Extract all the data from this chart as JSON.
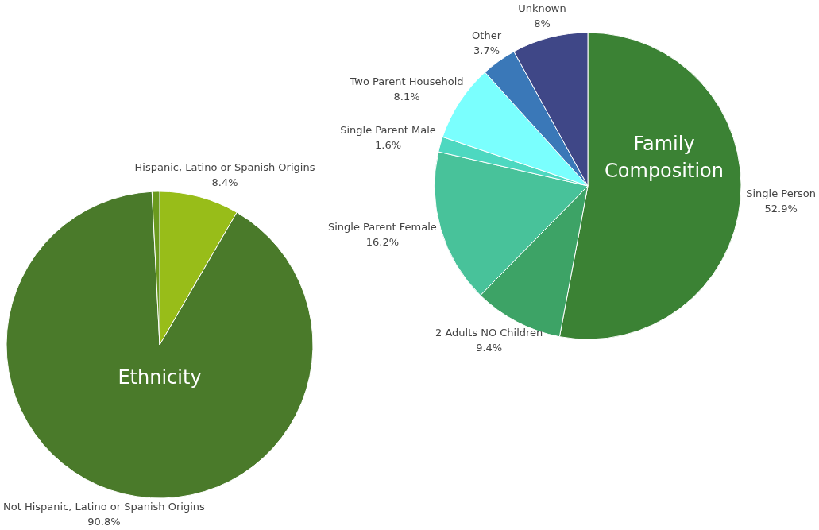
{
  "chart_data": [
    {
      "type": "pie",
      "title": "Ethnicity",
      "categories": [
        "Hispanic, Latino or Spanish Origins",
        "Not Hispanic, Latino or Spanish Origins",
        null
      ],
      "values": [
        8.4,
        90.8,
        0.8
      ],
      "value_labels": [
        "8.4%",
        "90.8%",
        null
      ],
      "colors": [
        "#98bd19",
        "#4a7a2a",
        "#6a9a1e"
      ]
    },
    {
      "type": "pie",
      "title": "Family Composition",
      "categories": [
        "Single Person",
        "2 Adults NO Children",
        "Single Parent Female",
        "Single Parent Male",
        "Two Parent Household",
        "Other",
        "Unknown"
      ],
      "values": [
        52.9,
        9.4,
        16.2,
        1.6,
        8.1,
        3.7,
        8
      ],
      "value_labels": [
        "52.9%",
        "9.4%",
        "16.2%",
        "1.6%",
        "8.1%",
        "3.7%",
        "8%"
      ],
      "colors": [
        "#3b8234",
        "#3da366",
        "#48c29a",
        "#4dd8c0",
        "#7afffe",
        "#3a78b8",
        "#3f4787"
      ]
    }
  ]
}
